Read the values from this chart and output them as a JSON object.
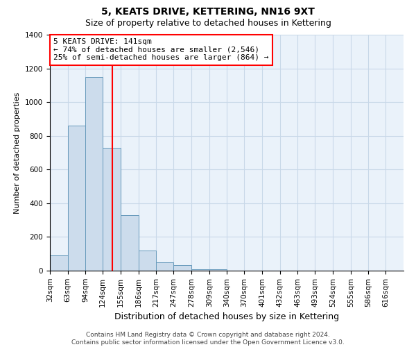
{
  "title": "5, KEATS DRIVE, KETTERING, NN16 9XT",
  "subtitle": "Size of property relative to detached houses in Kettering",
  "xlabel": "Distribution of detached houses by size in Kettering",
  "ylabel": "Number of detached properties",
  "bin_edges": [
    32,
    63,
    94,
    124,
    155,
    186,
    217,
    247,
    278,
    309,
    340,
    370,
    401,
    432,
    463,
    493,
    524,
    555,
    586,
    616,
    647
  ],
  "bar_heights": [
    90,
    860,
    1150,
    730,
    330,
    120,
    50,
    35,
    10,
    8,
    0,
    0,
    0,
    0,
    0,
    0,
    0,
    0,
    0,
    0
  ],
  "bar_color": "#ccdcec",
  "bar_edge_color": "#6699bb",
  "red_line_x": 141,
  "annotation_line1": "5 KEATS DRIVE: 141sqm",
  "annotation_line2": "← 74% of detached houses are smaller (2,546)",
  "annotation_line3": "25% of semi-detached houses are larger (864) →",
  "annotation_box_color": "white",
  "annotation_box_edge_color": "red",
  "ylim": [
    0,
    1400
  ],
  "yticks": [
    0,
    200,
    400,
    600,
    800,
    1000,
    1200,
    1400
  ],
  "title_fontsize": 10,
  "subtitle_fontsize": 9,
  "xlabel_fontsize": 9,
  "ylabel_fontsize": 8,
  "tick_fontsize": 7.5,
  "annotation_fontsize": 8,
  "footer_line1": "Contains HM Land Registry data © Crown copyright and database right 2024.",
  "footer_line2": "Contains public sector information licensed under the Open Government Licence v3.0.",
  "footer_fontsize": 6.5,
  "grid_color": "#c8d8e8",
  "background_color": "#eaf2fa"
}
